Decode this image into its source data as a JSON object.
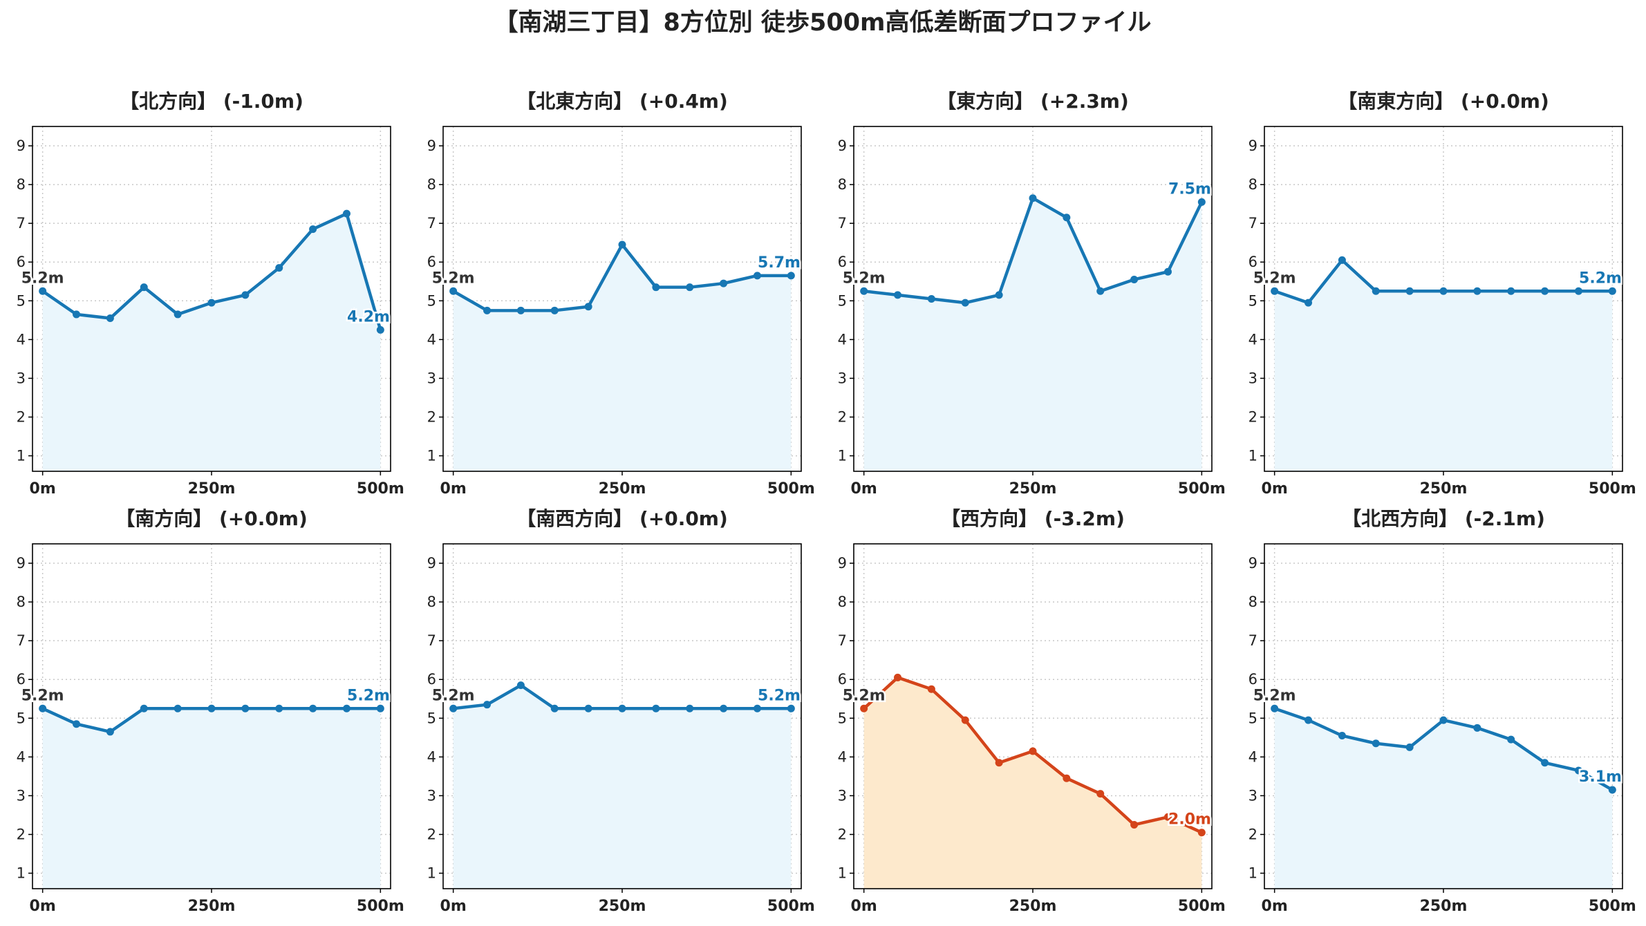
{
  "chart_data": {
    "type": "line",
    "title": "【南湖三丁目】8方位別 徒歩500m高低差断面プロファイル",
    "x": [
      0,
      50,
      100,
      150,
      200,
      250,
      300,
      350,
      400,
      450,
      500
    ],
    "xticks": [
      0,
      250,
      500
    ],
    "xtick_labels": [
      "0m",
      "250m",
      "500m"
    ],
    "xlim": [
      -15,
      515
    ],
    "ylim": [
      0.6,
      9.5
    ],
    "yticks": [
      1,
      2,
      3,
      4,
      5,
      6,
      7,
      8,
      9
    ],
    "ytick_labels": [
      "1",
      "2",
      "3",
      "4",
      "5",
      "6",
      "7",
      "8",
      "9"
    ],
    "grid": true,
    "colors": {
      "up": "#1777b4",
      "up_fill": "#eaf6fc",
      "down": "#d4441a",
      "down_fill": "#fde9cc",
      "start_label": "#333333"
    },
    "panels": [
      {
        "title": "【北方向】 (-1.0m)",
        "trend": "up",
        "values": [
          5.25,
          4.65,
          4.55,
          5.35,
          4.65,
          4.95,
          5.15,
          5.85,
          6.85,
          7.25,
          4.25
        ],
        "start_label": "5.2m",
        "end_label": "4.2m"
      },
      {
        "title": "【北東方向】 (+0.4m)",
        "trend": "up",
        "values": [
          5.25,
          4.75,
          4.75,
          4.75,
          4.85,
          6.45,
          5.35,
          5.35,
          5.45,
          5.65,
          5.65
        ],
        "start_label": "5.2m",
        "end_label": "5.7m"
      },
      {
        "title": "【東方向】 (+2.3m)",
        "trend": "up",
        "values": [
          5.25,
          5.15,
          5.05,
          4.95,
          5.15,
          7.65,
          7.15,
          5.25,
          5.55,
          5.75,
          7.55
        ],
        "start_label": "5.2m",
        "end_label": "7.5m"
      },
      {
        "title": "【南東方向】 (+0.0m)",
        "trend": "up",
        "values": [
          5.25,
          4.95,
          6.05,
          5.25,
          5.25,
          5.25,
          5.25,
          5.25,
          5.25,
          5.25,
          5.25
        ],
        "start_label": "5.2m",
        "end_label": "5.2m"
      },
      {
        "title": "【南方向】 (+0.0m)",
        "trend": "up",
        "values": [
          5.25,
          4.85,
          4.65,
          5.25,
          5.25,
          5.25,
          5.25,
          5.25,
          5.25,
          5.25,
          5.25
        ],
        "start_label": "5.2m",
        "end_label": "5.2m"
      },
      {
        "title": "【南西方向】 (+0.0m)",
        "trend": "up",
        "values": [
          5.25,
          5.35,
          5.85,
          5.25,
          5.25,
          5.25,
          5.25,
          5.25,
          5.25,
          5.25,
          5.25
        ],
        "start_label": "5.2m",
        "end_label": "5.2m"
      },
      {
        "title": "【西方向】 (-3.2m)",
        "trend": "down",
        "values": [
          5.25,
          6.05,
          5.75,
          4.95,
          3.85,
          4.15,
          3.45,
          3.05,
          2.25,
          2.45,
          2.05
        ],
        "start_label": "5.2m",
        "end_label": "2.0m"
      },
      {
        "title": "【北西方向】 (-2.1m)",
        "trend": "up",
        "values": [
          5.25,
          4.95,
          4.55,
          4.35,
          4.25,
          4.95,
          4.75,
          4.45,
          3.85,
          3.65,
          3.15
        ],
        "start_label": "5.2m",
        "end_label": "3.1m"
      }
    ]
  }
}
